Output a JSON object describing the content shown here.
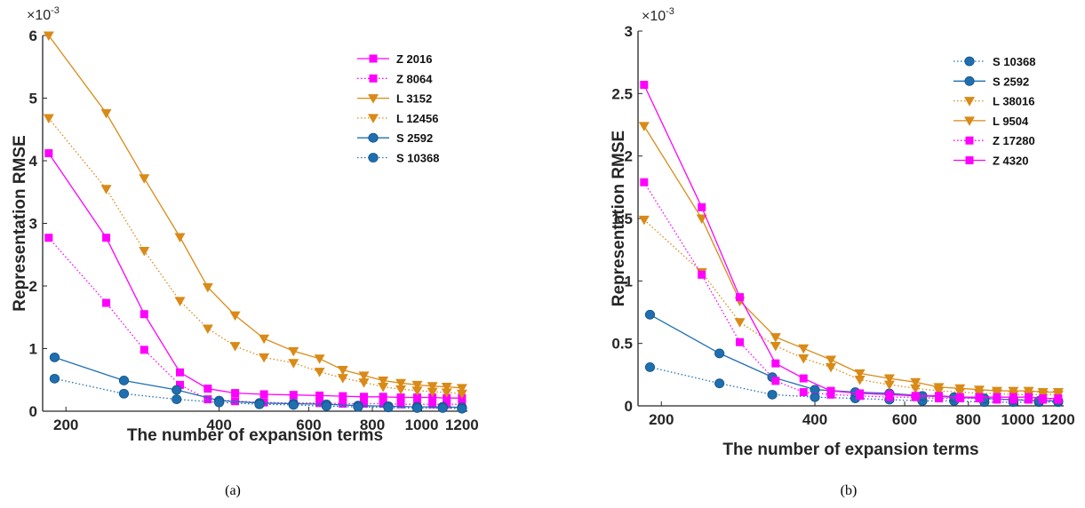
{
  "chart_data": [
    {
      "type": "line",
      "caption": "(a)",
      "xlabel": "The number of expansion terms",
      "ylabel": "Representation RMSE",
      "y_multiplier": "×10-3",
      "x_scale": "log",
      "xlim": [
        180,
        1230
      ],
      "ylim": [
        0,
        6
      ],
      "x_ticks": [
        200,
        400,
        600,
        800,
        1000,
        1200
      ],
      "y_ticks": [
        0,
        1,
        2,
        3,
        4,
        5,
        6
      ],
      "legend_position": "top-right",
      "series": [
        {
          "name": "Z 2016",
          "color": "#ff00ff",
          "style": "solid",
          "marker": "square",
          "x": [
            185,
            240,
            285,
            335,
            380,
            430,
            490,
            560,
            630,
            700,
            770,
            840,
            910,
            980,
            1050,
            1120,
            1200
          ],
          "y": [
            4.12,
            2.77,
            1.55,
            0.62,
            0.36,
            0.29,
            0.27,
            0.26,
            0.25,
            0.24,
            0.23,
            0.23,
            0.22,
            0.22,
            0.22,
            0.21,
            0.21
          ]
        },
        {
          "name": "Z 8064",
          "color": "#ff00ff",
          "style": "dotted",
          "marker": "square",
          "x": [
            185,
            240,
            285,
            335,
            380,
            430,
            490,
            560,
            630,
            700,
            770,
            840,
            910,
            980,
            1050,
            1120,
            1200
          ],
          "y": [
            2.77,
            1.73,
            0.98,
            0.42,
            0.19,
            0.16,
            0.14,
            0.13,
            0.13,
            0.12,
            0.12,
            0.12,
            0.11,
            0.11,
            0.11,
            0.11,
            0.11
          ]
        },
        {
          "name": "L 3152",
          "color": "#d98a17",
          "style": "solid",
          "marker": "triangle-down",
          "x": [
            185,
            240,
            285,
            335,
            380,
            430,
            490,
            560,
            630,
            700,
            770,
            840,
            910,
            980,
            1050,
            1120,
            1200
          ],
          "y": [
            6.0,
            4.76,
            3.72,
            2.78,
            1.98,
            1.53,
            1.16,
            0.96,
            0.84,
            0.66,
            0.57,
            0.49,
            0.45,
            0.42,
            0.4,
            0.39,
            0.37
          ]
        },
        {
          "name": "L 12456",
          "color": "#d98a17",
          "style": "dotted",
          "marker": "triangle-down",
          "x": [
            185,
            240,
            285,
            335,
            380,
            430,
            490,
            560,
            630,
            700,
            770,
            840,
            910,
            980,
            1050,
            1120,
            1200
          ],
          "y": [
            4.68,
            3.55,
            2.56,
            1.76,
            1.32,
            1.04,
            0.86,
            0.77,
            0.63,
            0.53,
            0.46,
            0.39,
            0.35,
            0.33,
            0.31,
            0.3,
            0.28
          ]
        },
        {
          "name": "S 2592",
          "color": "#1f6fb0",
          "style": "solid",
          "marker": "circle",
          "x": [
            190,
            260,
            330,
            400,
            480,
            560,
            650,
            750,
            860,
            980,
            1100,
            1200
          ],
          "y": [
            0.86,
            0.49,
            0.34,
            0.17,
            0.13,
            0.12,
            0.11,
            0.09,
            0.08,
            0.07,
            0.07,
            0.06
          ]
        },
        {
          "name": "S 10368",
          "color": "#1f6fb0",
          "style": "dotted",
          "marker": "circle",
          "x": [
            190,
            260,
            330,
            400,
            480,
            560,
            650,
            750,
            860,
            980,
            1100,
            1200
          ],
          "y": [
            0.52,
            0.28,
            0.19,
            0.14,
            0.11,
            0.1,
            0.08,
            0.07,
            0.06,
            0.05,
            0.05,
            0.04
          ]
        }
      ]
    },
    {
      "type": "line",
      "caption": "(b)",
      "xlabel": "The number of expansion terms",
      "ylabel": "Representation RMSE",
      "y_multiplier": "×10-3",
      "x_scale": "log",
      "xlim": [
        180,
        1230
      ],
      "ylim": [
        0,
        3
      ],
      "x_ticks": [
        200,
        400,
        600,
        800,
        1000,
        1200
      ],
      "y_ticks": [
        0,
        0.5,
        1,
        1.5,
        2,
        2.5,
        3
      ],
      "legend_position": "top-right",
      "series": [
        {
          "name": "S 10368",
          "color": "#1f6fb0",
          "style": "dotted",
          "marker": "circle",
          "x": [
            190,
            260,
            330,
            400,
            480,
            560,
            650,
            750,
            860,
            980,
            1100,
            1200
          ],
          "y": [
            0.31,
            0.18,
            0.09,
            0.07,
            0.06,
            0.05,
            0.04,
            0.04,
            0.03,
            0.03,
            0.03,
            0.03
          ]
        },
        {
          "name": "S 2592",
          "color": "#1f6fb0",
          "style": "solid",
          "marker": "circle",
          "x": [
            190,
            260,
            330,
            400,
            480,
            560,
            650,
            750,
            860,
            980,
            1100,
            1200
          ],
          "y": [
            0.73,
            0.42,
            0.23,
            0.13,
            0.11,
            0.1,
            0.08,
            0.07,
            0.06,
            0.05,
            0.04,
            0.04
          ]
        },
        {
          "name": "L 38016",
          "color": "#d98a17",
          "style": "dotted",
          "marker": "triangle-down",
          "x": [
            185,
            240,
            285,
            335,
            380,
            430,
            490,
            560,
            630,
            700,
            770,
            840,
            910,
            980,
            1050,
            1120,
            1200
          ],
          "y": [
            1.49,
            1.07,
            0.67,
            0.48,
            0.38,
            0.31,
            0.21,
            0.17,
            0.14,
            0.12,
            0.11,
            0.1,
            0.1,
            0.09,
            0.09,
            0.09,
            0.09
          ]
        },
        {
          "name": "L 9504",
          "color": "#d98a17",
          "style": "solid",
          "marker": "triangle-down",
          "x": [
            185,
            240,
            285,
            335,
            380,
            430,
            490,
            560,
            630,
            700,
            770,
            840,
            910,
            980,
            1050,
            1120,
            1200
          ],
          "y": [
            2.24,
            1.5,
            0.84,
            0.55,
            0.46,
            0.37,
            0.26,
            0.22,
            0.19,
            0.15,
            0.14,
            0.13,
            0.12,
            0.12,
            0.12,
            0.11,
            0.11
          ]
        },
        {
          "name": "Z 17280",
          "color": "#ff00ff",
          "style": "dotted",
          "marker": "square",
          "x": [
            185,
            240,
            285,
            335,
            380,
            430,
            490,
            560,
            630,
            700,
            770,
            840,
            910,
            980,
            1050,
            1120,
            1200
          ],
          "y": [
            1.79,
            1.05,
            0.51,
            0.2,
            0.11,
            0.09,
            0.08,
            0.07,
            0.07,
            0.06,
            0.06,
            0.06,
            0.05,
            0.05,
            0.05,
            0.05,
            0.05
          ]
        },
        {
          "name": "Z 4320",
          "color": "#ff00ff",
          "style": "solid",
          "marker": "square",
          "x": [
            185,
            240,
            285,
            335,
            380,
            430,
            490,
            560,
            630,
            700,
            770,
            840,
            910,
            980,
            1050,
            1120,
            1200
          ],
          "y": [
            2.57,
            1.59,
            0.87,
            0.34,
            0.22,
            0.12,
            0.1,
            0.09,
            0.08,
            0.08,
            0.07,
            0.07,
            0.07,
            0.07,
            0.07,
            0.06,
            0.06
          ]
        }
      ]
    }
  ]
}
